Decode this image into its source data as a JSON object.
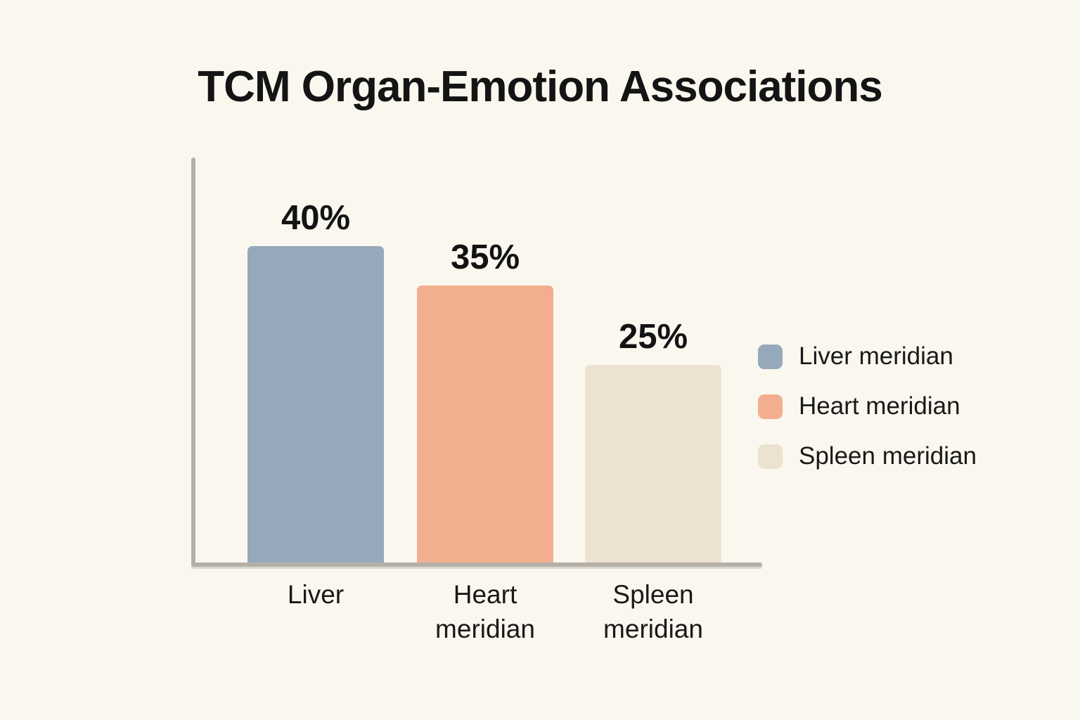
{
  "title": "TCM Organ-Emotion Associations",
  "colors": {
    "background": "#faf7ee",
    "axis": "#b4b0a8",
    "text": "#141414"
  },
  "chart_data": {
    "type": "bar",
    "title": "TCM Organ-Emotion Associations",
    "categories": [
      "Liver",
      "Heart meridian",
      "Spleen meridian"
    ],
    "values": [
      40,
      35,
      25
    ],
    "value_labels": [
      "40%",
      "35%",
      "25%"
    ],
    "unit": "%",
    "xlabel": "",
    "ylabel": "",
    "ylim": [
      0,
      51.2
    ],
    "grid": false,
    "y_ticks_visible": false,
    "legend_position": "right",
    "series_colors": [
      "#96a9bb",
      "#f3ae90",
      "#ebe2d0"
    ],
    "legend": [
      {
        "label": "Liver meridian",
        "color": "#96a9bb"
      },
      {
        "label": "Heart meridian",
        "color": "#f3ae90"
      },
      {
        "label": "Spleen meridian",
        "color": "#ebe2d0"
      }
    ]
  }
}
